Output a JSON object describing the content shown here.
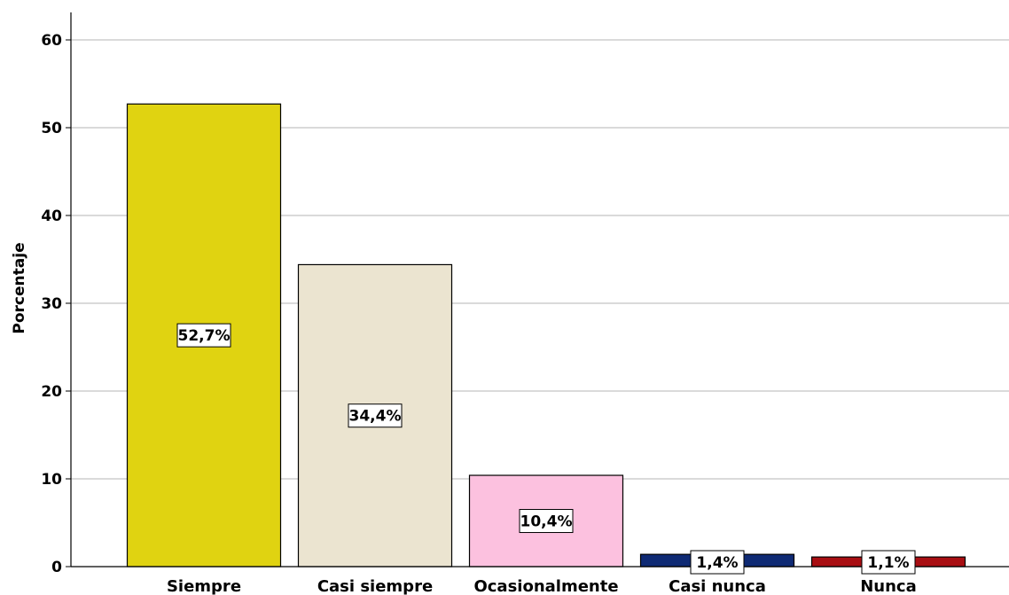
{
  "chart_data": {
    "type": "bar",
    "ylabel": "Porcentaje",
    "xlabel": "",
    "ylim": [
      0,
      62
    ],
    "yticks": [
      0,
      10,
      20,
      30,
      40,
      50,
      60
    ],
    "grid": true,
    "categories": [
      "Siempre",
      "Casi siempre",
      "Ocasionalmente",
      "Casi nunca",
      "Nunca"
    ],
    "values": [
      52.7,
      34.4,
      10.4,
      1.4,
      1.1
    ],
    "data_labels": [
      "52,7%",
      "34,4%",
      "10,4%",
      "1,4%",
      "1,1%"
    ],
    "colors": [
      "#e0d311",
      "#ebe4d0",
      "#fcc1df",
      "#0f2a74",
      "#a80e12"
    ]
  }
}
